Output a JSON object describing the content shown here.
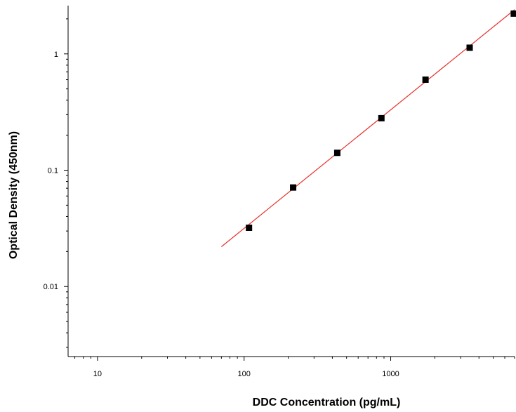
{
  "chart_data": {
    "type": "scatter",
    "title": "",
    "xlabel": "DDC Concentration (pg/mL)",
    "ylabel": "Optical Density (450nm)",
    "x_scale": "log",
    "y_scale": "log",
    "xlim": [
      6.3,
      7000
    ],
    "ylim": [
      0.0025,
      2.6
    ],
    "x_ticks": [
      10,
      100,
      1000
    ],
    "x_tick_labels": [
      "10",
      "100",
      "1000"
    ],
    "y_ticks": [
      0.01,
      0.1,
      1
    ],
    "y_tick_labels": [
      "0.01",
      "0.1",
      "1"
    ],
    "grid": false,
    "legend": "none",
    "series": [
      {
        "points": [
          {
            "x": 108,
            "y": 0.032
          },
          {
            "x": 216,
            "y": 0.071
          },
          {
            "x": 432,
            "y": 0.141
          },
          {
            "x": 864,
            "y": 0.28
          },
          {
            "x": 1728,
            "y": 0.6
          },
          {
            "x": 3456,
            "y": 1.13
          },
          {
            "x": 6912,
            "y": 2.22
          }
        ],
        "marker": "square",
        "color": "#000000"
      }
    ],
    "fit_line": {
      "x": [
        70,
        7000
      ],
      "y": [
        0.022,
        2.4
      ],
      "color": "#e8312a"
    }
  }
}
